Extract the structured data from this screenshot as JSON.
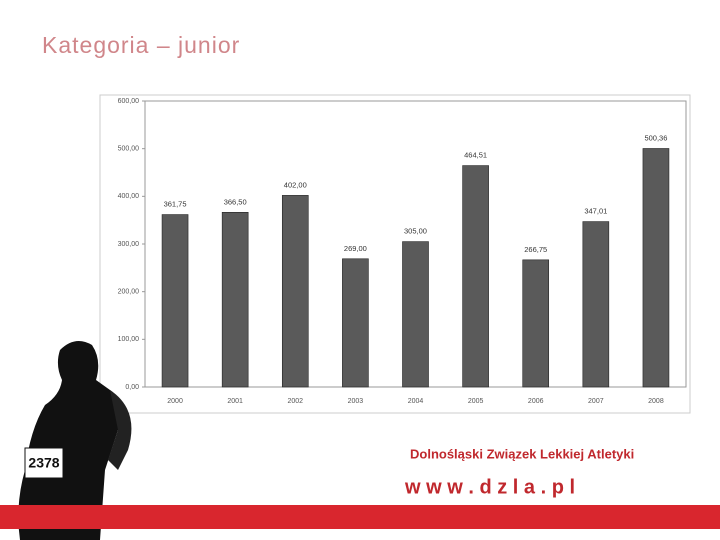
{
  "header": {
    "title": "Kategoria – junior"
  },
  "chart_data": {
    "type": "bar",
    "categories": [
      "2000",
      "2001",
      "2002",
      "2003",
      "2004",
      "2005",
      "2006",
      "2007",
      "2008"
    ],
    "values": [
      361.75,
      366.5,
      402,
      269,
      305,
      464.51,
      266.75,
      347.01,
      500.36
    ],
    "value_labels": [
      "361,75",
      "366,50",
      "402,00",
      "269,00",
      "305,00",
      "464,51",
      "266,75",
      "347,01",
      "500,36"
    ],
    "color": "#5a5a5a",
    "ylim": [
      0,
      600
    ],
    "yticks": [
      {
        "value": 0,
        "label": "0,00"
      },
      {
        "value": 100,
        "label": "100,00"
      },
      {
        "value": 200,
        "label": "200,00"
      },
      {
        "value": 300,
        "label": "300,00"
      },
      {
        "value": 400,
        "label": "400,00"
      },
      {
        "value": 500,
        "label": "500,00"
      },
      {
        "value": 600,
        "label": "600,00"
      }
    ],
    "grid": false
  },
  "footer": {
    "organization": "Dolnośląski Związek Lekkiej Atletyki",
    "website": "w w w . d z l a . p l"
  },
  "illustration": {
    "bib": "2378"
  }
}
